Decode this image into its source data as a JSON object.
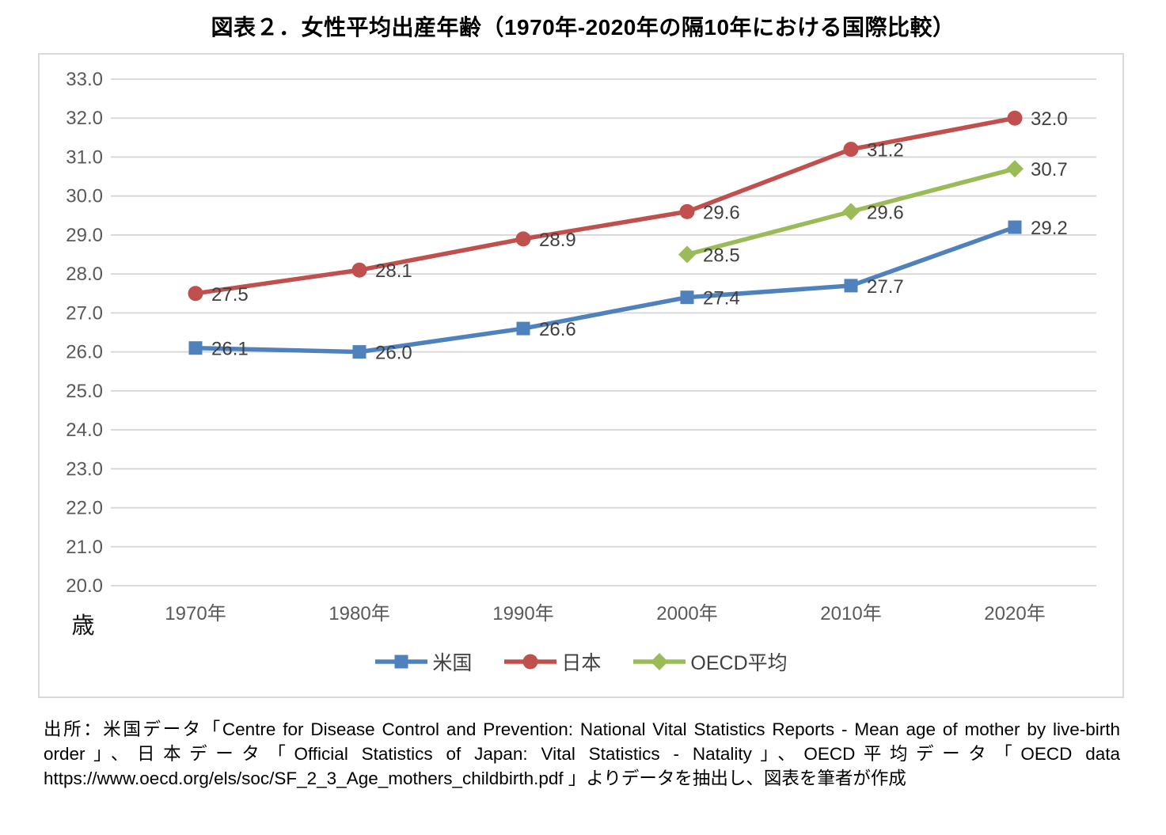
{
  "title": "図表２．女性平均出産年齢（1970年-2020年の隔10年における国際比較）",
  "chart_data": {
    "type": "line",
    "categories": [
      "1970年",
      "1980年",
      "1990年",
      "2000年",
      "2010年",
      "2020年"
    ],
    "series": [
      {
        "name": "米国",
        "color": "#4f81bd",
        "marker": "square",
        "values": [
          26.1,
          26.0,
          26.6,
          27.4,
          27.7,
          29.2
        ]
      },
      {
        "name": "日本",
        "color": "#c0504d",
        "marker": "circle",
        "values": [
          27.5,
          28.1,
          28.9,
          29.6,
          31.2,
          32.0
        ]
      },
      {
        "name": "OECD平均",
        "color": "#9bbb59",
        "marker": "diamond",
        "values": [
          null,
          null,
          null,
          28.5,
          29.6,
          30.7
        ]
      }
    ],
    "data_labels": true,
    "ylim": [
      20.0,
      33.0
    ],
    "ytick_step": 1.0,
    "yticks": [
      "33.0",
      "32.0",
      "31.0",
      "30.0",
      "29.0",
      "28.0",
      "27.0",
      "26.0",
      "25.0",
      "24.0",
      "23.0",
      "22.0",
      "21.0",
      "20.0"
    ],
    "unit_label": "歳",
    "grid": true,
    "legend_position": "bottom"
  },
  "source_note": "出所：米国データ「Centre for Disease Control and Prevention: National Vital Statistics Reports - Mean age of mother by live-birth order」、日本データ「Official Statistics of Japan: Vital Statistics - Natality」、OECD平均データ「OECD data https://www.oecd.org/els/soc/SF_2_3_Age_mothers_childbirth.pdf  」よりデータを抽出し、図表を筆者が作成"
}
